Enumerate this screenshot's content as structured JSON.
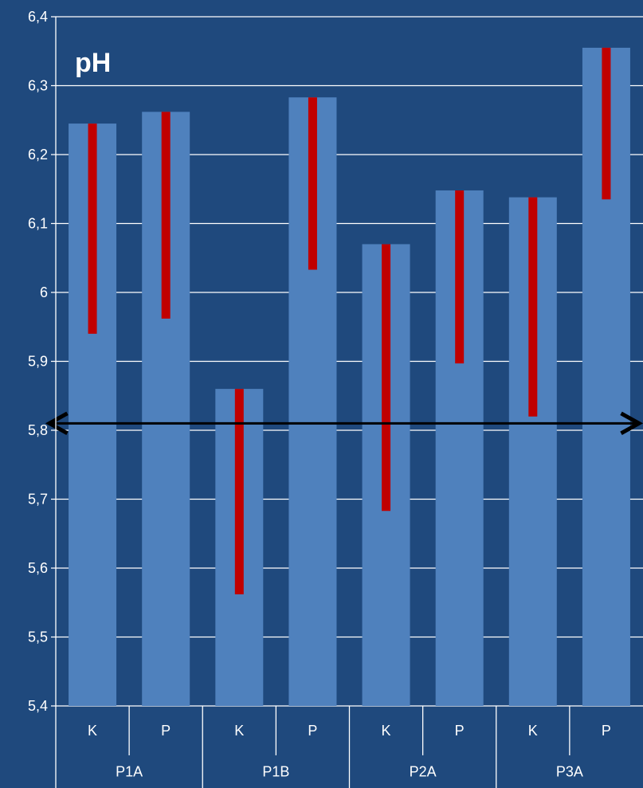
{
  "chart_data": {
    "type": "bar",
    "title": "pH",
    "ylim": [
      5.4,
      6.4
    ],
    "yticks": [
      "5,4",
      "5,5",
      "5,6",
      "5,7",
      "5,8",
      "5,9",
      "6",
      "6,1",
      "6,2",
      "6,3",
      "6,4"
    ],
    "grid": true,
    "categories": [
      "K",
      "P",
      "K",
      "P",
      "K",
      "P",
      "K",
      "P"
    ],
    "groups": [
      "P1A",
      "P1B",
      "P2A",
      "P3A"
    ],
    "values": [
      6.245,
      6.262,
      5.86,
      6.283,
      6.07,
      6.148,
      6.138,
      6.355
    ],
    "ranges": [
      [
        5.94,
        6.245
      ],
      [
        5.962,
        6.262
      ],
      [
        5.562,
        5.86
      ],
      [
        6.033,
        6.283
      ],
      [
        5.683,
        6.07
      ],
      [
        5.897,
        6.148
      ],
      [
        5.82,
        6.138
      ],
      [
        6.135,
        6.355
      ]
    ],
    "reference_line": 5.81
  },
  "colors": {
    "background": "#1f497d",
    "bar": "#4f81bd",
    "range": "#c00000",
    "grid": "#ffffff",
    "reference": "#000000"
  }
}
